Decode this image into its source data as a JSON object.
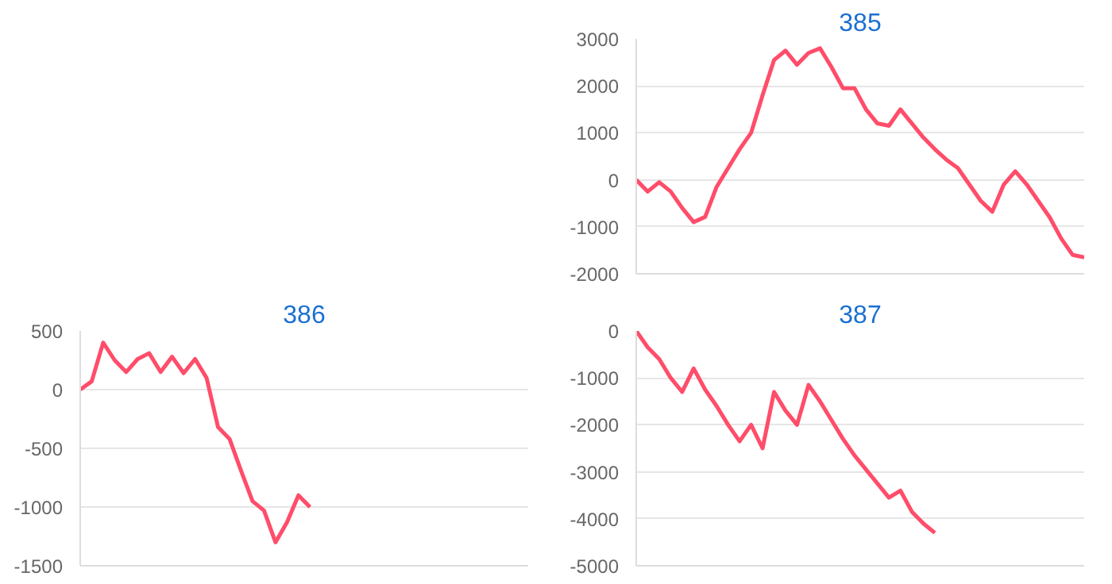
{
  "chart_data": [
    {
      "type": "line",
      "title": "385",
      "categories": [
        null,
        null,
        null,
        null,
        null,
        null,
        null,
        null,
        null,
        null,
        null,
        null,
        null,
        null,
        null,
        null,
        null,
        null,
        null,
        null,
        null,
        null,
        null,
        null,
        null,
        null,
        null,
        null,
        null,
        null,
        null,
        null,
        null,
        null,
        null,
        null,
        null,
        null,
        null,
        null
      ],
      "series": [
        {
          "color": "#ff4d6a",
          "values": [
            0,
            -250,
            -50,
            -250,
            -600,
            -900,
            -790,
            -150,
            250,
            650,
            1000,
            1800,
            2550,
            2750,
            2450,
            2700,
            2800,
            2400,
            1950,
            1950,
            1500,
            1200,
            1150,
            1500,
            1200,
            900,
            650,
            430,
            250,
            -100,
            -450,
            -680,
            -100,
            180,
            -100,
            -450,
            -800,
            -1250,
            -1600,
            -1650
          ]
        }
      ],
      "ylim": [
        -2000,
        3000
      ],
      "yticks": [
        -2000,
        -1000,
        0,
        1000,
        2000,
        3000
      ],
      "grid": "y",
      "tick_labels": "y",
      "marker": "none",
      "line_style": "solid"
    },
    {
      "type": "line",
      "title": "386",
      "categories": [
        null,
        null,
        null,
        null,
        null,
        null,
        null,
        null,
        null,
        null,
        null,
        null,
        null,
        null,
        null,
        null,
        null,
        null,
        null,
        null,
        null,
        null,
        null,
        null,
        null,
        null,
        null,
        null,
        null,
        null,
        null,
        null,
        null,
        null,
        null,
        null,
        null,
        null,
        null,
        null
      ],
      "series": [
        {
          "color": "#ff4d6a",
          "values": [
            0,
            70,
            400,
            250,
            150,
            260,
            310,
            150,
            280,
            140,
            260,
            100,
            -320,
            -420,
            -690,
            -950,
            -1030,
            -1300,
            -1130,
            -900,
            -1000,
            null,
            null,
            null,
            null,
            null,
            null,
            null,
            null,
            null,
            null,
            null,
            null,
            null,
            null,
            null,
            null,
            null,
            null,
            null
          ]
        }
      ],
      "ylim": [
        -1500,
        500
      ],
      "yticks": [
        -1500,
        -1000,
        -500,
        0,
        500
      ],
      "grid": "y",
      "tick_labels": "y",
      "marker": "none",
      "line_style": "solid"
    },
    {
      "type": "line",
      "title": "387",
      "categories": [
        null,
        null,
        null,
        null,
        null,
        null,
        null,
        null,
        null,
        null,
        null,
        null,
        null,
        null,
        null,
        null,
        null,
        null,
        null,
        null,
        null,
        null,
        null,
        null,
        null,
        null,
        null,
        null,
        null,
        null,
        null,
        null,
        null,
        null,
        null,
        null,
        null,
        null,
        null,
        null
      ],
      "series": [
        {
          "color": "#ff4d6a",
          "values": [
            0,
            -350,
            -600,
            -1000,
            -1300,
            -800,
            -1250,
            -1600,
            -2000,
            -2350,
            -2000,
            -2500,
            -1300,
            -1700,
            -2000,
            -1150,
            -1500,
            -1900,
            -2300,
            -2650,
            -2950,
            -3250,
            -3550,
            -3400,
            -3850,
            -4100,
            -4300,
            null,
            null,
            null,
            null,
            null,
            null,
            null,
            null,
            null,
            null,
            null,
            null,
            null
          ]
        }
      ],
      "ylim": [
        -5000,
        0
      ],
      "yticks": [
        -5000,
        -4000,
        -3000,
        -2000,
        -1000,
        0
      ],
      "grid": "y",
      "tick_labels": "y",
      "marker": "none",
      "line_style": "solid"
    }
  ]
}
